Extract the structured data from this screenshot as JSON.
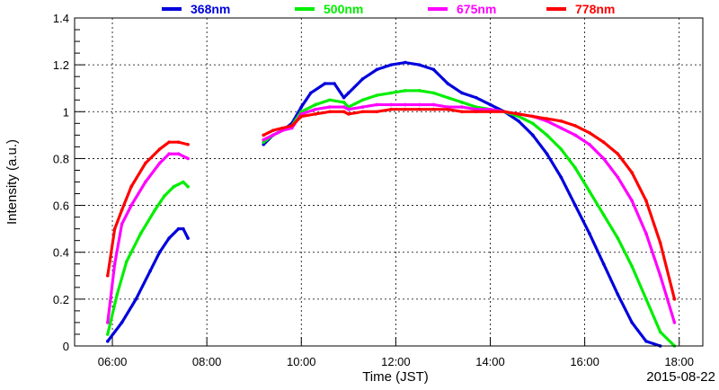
{
  "chart_data": {
    "type": "scatter",
    "title": "",
    "xlabel": "Time (JST)",
    "ylabel": "Intensity (a.u.)",
    "date_label": "2015-08-22",
    "xlim": [
      5.2,
      18.5
    ],
    "ylim": [
      0,
      1.4
    ],
    "x_ticks": [
      {
        "value": 6,
        "label": "06:00"
      },
      {
        "value": 8,
        "label": "08:00"
      },
      {
        "value": 10,
        "label": "10:00"
      },
      {
        "value": 12,
        "label": "12:00"
      },
      {
        "value": 14,
        "label": "14:00"
      },
      {
        "value": 16,
        "label": "16:00"
      },
      {
        "value": 18,
        "label": "18:00"
      }
    ],
    "y_ticks": [
      {
        "value": 0,
        "label": "0"
      },
      {
        "value": 0.2,
        "label": "0.2"
      },
      {
        "value": 0.4,
        "label": "0.4"
      },
      {
        "value": 0.6,
        "label": "0.6"
      },
      {
        "value": 0.8,
        "label": "0.8"
      },
      {
        "value": 1.0,
        "label": "1"
      },
      {
        "value": 1.2,
        "label": "1.2"
      },
      {
        "value": 1.4,
        "label": "1.4"
      }
    ],
    "grid": true,
    "legend_position": "top",
    "series": [
      {
        "name": "368nm",
        "color": "#0000dd",
        "x": [
          5.9,
          6.2,
          6.5,
          6.8,
          7.0,
          7.2,
          7.4,
          7.5,
          7.6,
          9.2,
          9.4,
          9.6,
          9.8,
          10.0,
          10.2,
          10.5,
          10.7,
          10.9,
          11.0,
          11.3,
          11.6,
          11.9,
          12.2,
          12.5,
          12.8,
          13.1,
          13.4,
          13.7,
          14.0,
          14.3,
          14.6,
          14.9,
          15.2,
          15.5,
          15.8,
          16.1,
          16.4,
          16.7,
          17.0,
          17.3,
          17.6
        ],
        "y": [
          0.02,
          0.1,
          0.2,
          0.32,
          0.4,
          0.46,
          0.5,
          0.5,
          0.46,
          0.86,
          0.9,
          0.92,
          0.95,
          1.02,
          1.08,
          1.12,
          1.12,
          1.06,
          1.08,
          1.14,
          1.18,
          1.2,
          1.21,
          1.2,
          1.18,
          1.12,
          1.08,
          1.06,
          1.03,
          1.0,
          0.96,
          0.9,
          0.82,
          0.72,
          0.6,
          0.48,
          0.35,
          0.22,
          0.1,
          0.02,
          0.0
        ]
      },
      {
        "name": "500nm",
        "color": "#00ee00",
        "x": [
          5.9,
          6.1,
          6.3,
          6.6,
          6.9,
          7.1,
          7.3,
          7.5,
          7.6,
          9.2,
          9.4,
          9.6,
          9.8,
          10.0,
          10.3,
          10.6,
          10.9,
          11.0,
          11.3,
          11.6,
          11.9,
          12.2,
          12.5,
          12.8,
          13.1,
          13.4,
          13.7,
          14.0,
          14.3,
          14.6,
          14.9,
          15.2,
          15.5,
          15.8,
          16.1,
          16.4,
          16.7,
          17.0,
          17.3,
          17.6,
          17.9
        ],
        "y": [
          0.05,
          0.22,
          0.36,
          0.48,
          0.58,
          0.64,
          0.68,
          0.7,
          0.68,
          0.87,
          0.9,
          0.92,
          0.94,
          1.0,
          1.03,
          1.05,
          1.04,
          1.02,
          1.05,
          1.07,
          1.08,
          1.09,
          1.09,
          1.08,
          1.06,
          1.04,
          1.02,
          1.01,
          1.0,
          0.98,
          0.95,
          0.9,
          0.84,
          0.76,
          0.66,
          0.56,
          0.46,
          0.34,
          0.2,
          0.06,
          0.0
        ]
      },
      {
        "name": "675nm",
        "color": "#ff00ff",
        "x": [
          5.9,
          6.05,
          6.2,
          6.4,
          6.7,
          7.0,
          7.2,
          7.4,
          7.6,
          9.2,
          9.4,
          9.6,
          9.8,
          10.0,
          10.3,
          10.6,
          10.9,
          11.0,
          11.3,
          11.6,
          11.9,
          12.2,
          12.5,
          12.8,
          13.1,
          13.4,
          13.7,
          14.0,
          14.3,
          14.6,
          14.9,
          15.2,
          15.5,
          15.8,
          16.1,
          16.4,
          16.7,
          17.0,
          17.3,
          17.6,
          17.9
        ],
        "y": [
          0.1,
          0.35,
          0.52,
          0.6,
          0.7,
          0.78,
          0.82,
          0.82,
          0.8,
          0.88,
          0.9,
          0.92,
          0.93,
          0.99,
          1.01,
          1.02,
          1.02,
          1.01,
          1.02,
          1.03,
          1.03,
          1.03,
          1.03,
          1.03,
          1.02,
          1.02,
          1.01,
          1.01,
          1.0,
          0.99,
          0.98,
          0.96,
          0.93,
          0.9,
          0.86,
          0.8,
          0.72,
          0.62,
          0.48,
          0.3,
          0.1
        ]
      },
      {
        "name": "778nm",
        "color": "#ff0000",
        "x": [
          5.9,
          6.05,
          6.2,
          6.4,
          6.7,
          7.0,
          7.2,
          7.4,
          7.6,
          9.2,
          9.4,
          9.6,
          9.8,
          10.0,
          10.3,
          10.6,
          10.9,
          11.0,
          11.3,
          11.6,
          11.9,
          12.2,
          12.5,
          12.8,
          13.1,
          13.4,
          13.7,
          14.0,
          14.3,
          14.6,
          14.9,
          15.2,
          15.5,
          15.8,
          16.1,
          16.4,
          16.7,
          17.0,
          17.3,
          17.6,
          17.9
        ],
        "y": [
          0.3,
          0.5,
          0.58,
          0.68,
          0.78,
          0.84,
          0.87,
          0.87,
          0.86,
          0.9,
          0.92,
          0.93,
          0.94,
          0.98,
          0.99,
          1.0,
          1.0,
          0.99,
          1.0,
          1.0,
          1.01,
          1.01,
          1.01,
          1.01,
          1.01,
          1.0,
          1.0,
          1.0,
          1.0,
          0.99,
          0.98,
          0.97,
          0.96,
          0.94,
          0.91,
          0.87,
          0.82,
          0.74,
          0.62,
          0.44,
          0.2
        ]
      }
    ]
  }
}
